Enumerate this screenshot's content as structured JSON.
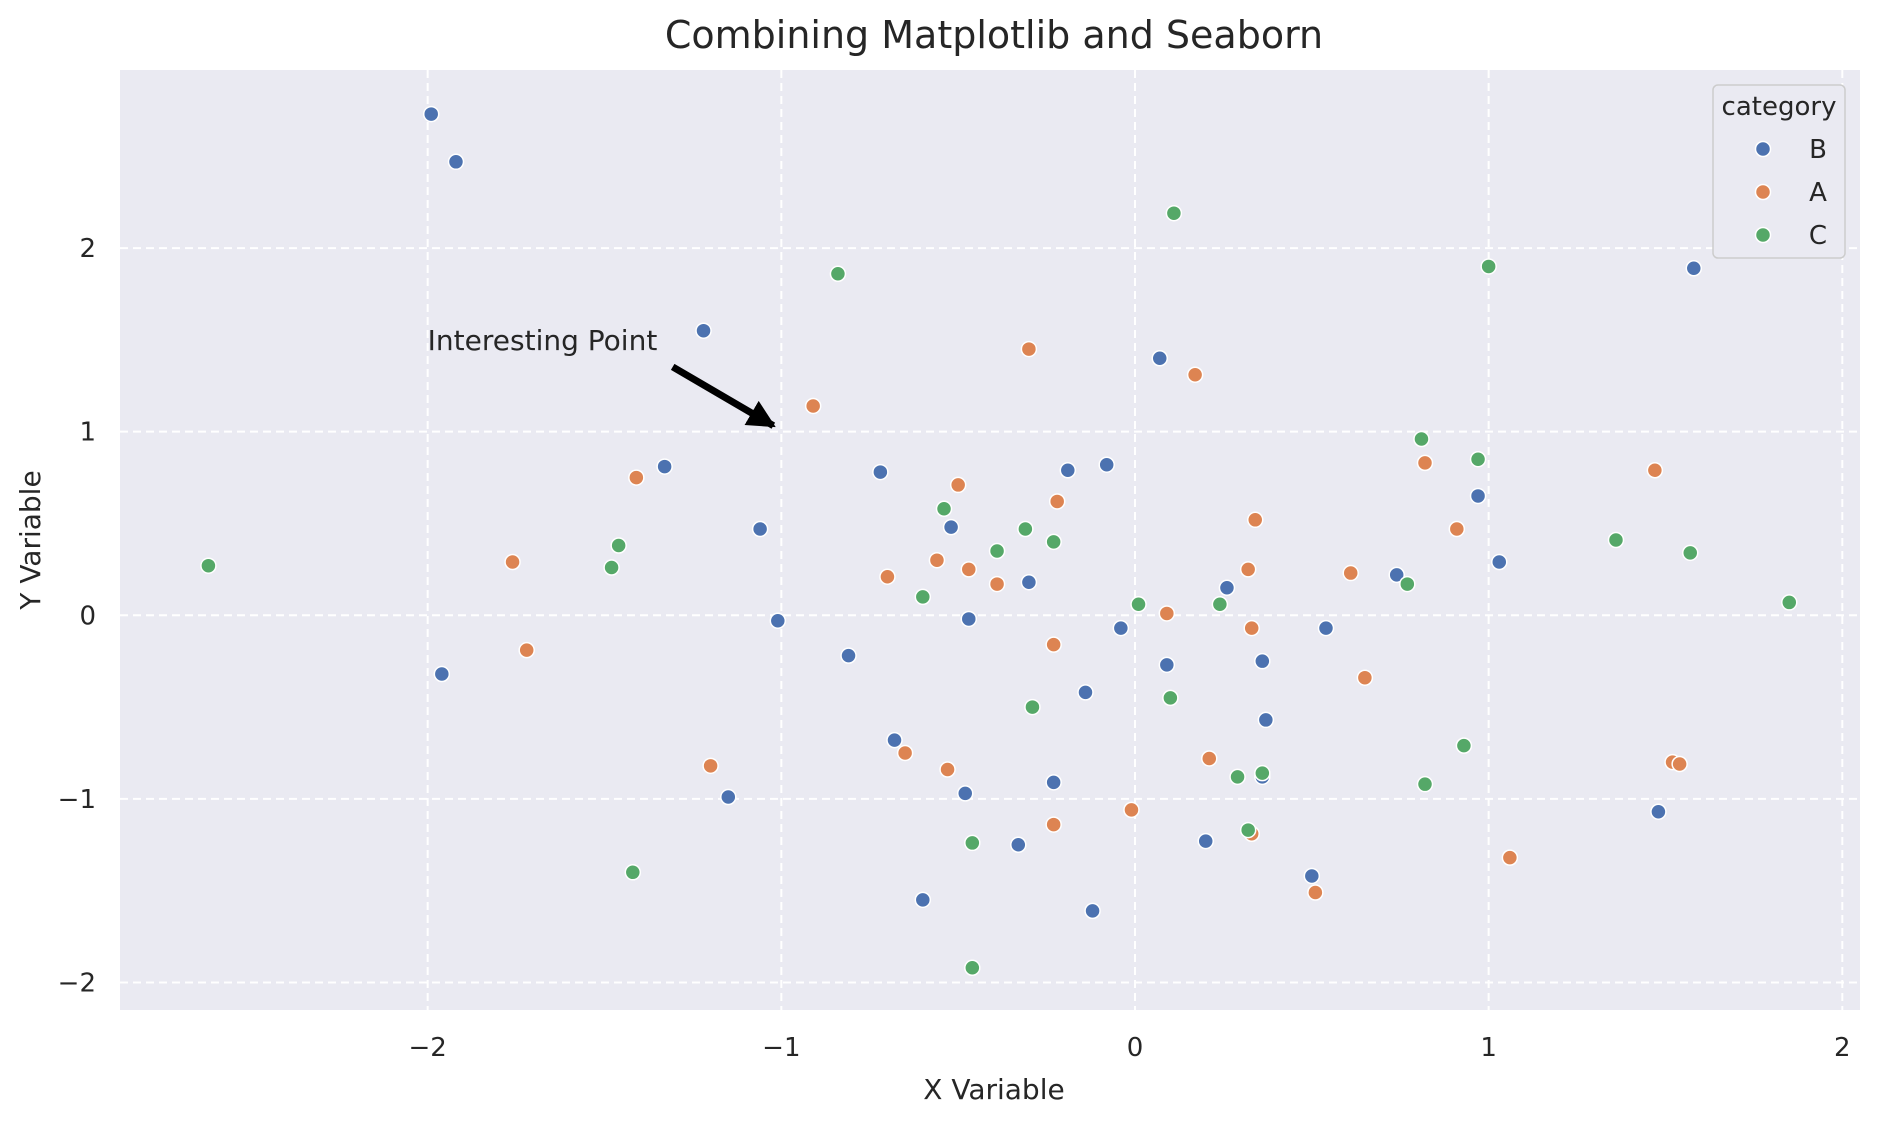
{
  "chart_data": {
    "type": "scatter",
    "title": "Combining Matplotlib and Seaborn",
    "xlabel": "X Variable",
    "ylabel": "Y Variable",
    "xlim": [
      -2.87,
      2.05
    ],
    "ylim": [
      -2.15,
      2.97
    ],
    "xticks": [
      -2,
      -1,
      0,
      1,
      2
    ],
    "yticks": [
      -2,
      -1,
      0,
      1,
      2
    ],
    "xtick_labels": [
      "−2",
      "−1",
      "0",
      "1",
      "2"
    ],
    "ytick_labels": [
      "−2",
      "−1",
      "0",
      "1",
      "2"
    ],
    "grid": true,
    "background": "#eaeaf2",
    "legend": {
      "title": "category",
      "placement": "top-right",
      "entries": [
        {
          "name": "B",
          "color": "#4c72b0"
        },
        {
          "name": "A",
          "color": "#dd8452"
        },
        {
          "name": "C",
          "color": "#55a868"
        }
      ]
    },
    "annotation": {
      "text": "Interesting Point",
      "xy": [
        -1,
        1
      ],
      "xytext": [
        -2,
        1.5
      ]
    },
    "series": [
      {
        "name": "B",
        "color": "#4c72b0",
        "points": [
          [
            -1.99,
            2.73
          ],
          [
            -1.92,
            2.47
          ],
          [
            -1.22,
            1.55
          ],
          [
            1.58,
            1.89
          ],
          [
            0.07,
            1.4
          ],
          [
            -1.33,
            0.81
          ],
          [
            -0.72,
            0.78
          ],
          [
            -0.19,
            0.79
          ],
          [
            -0.08,
            0.82
          ],
          [
            0.97,
            0.65
          ],
          [
            -1.06,
            0.47
          ],
          [
            -0.52,
            0.48
          ],
          [
            1.03,
            0.29
          ],
          [
            -0.3,
            0.18
          ],
          [
            0.26,
            0.15
          ],
          [
            0.74,
            0.22
          ],
          [
            -1.01,
            -0.03
          ],
          [
            -0.47,
            -0.02
          ],
          [
            -0.04,
            -0.07
          ],
          [
            0.54,
            -0.07
          ],
          [
            -1.96,
            -0.32
          ],
          [
            -0.81,
            -0.22
          ],
          [
            0.09,
            -0.27
          ],
          [
            0.36,
            -0.25
          ],
          [
            -0.14,
            -0.42
          ],
          [
            0.37,
            -0.57
          ],
          [
            -0.68,
            -0.68
          ],
          [
            -0.23,
            -0.91
          ],
          [
            0.36,
            -0.88
          ],
          [
            -1.15,
            -0.99
          ],
          [
            -0.48,
            -0.97
          ],
          [
            1.48,
            -1.07
          ],
          [
            -0.33,
            -1.25
          ],
          [
            0.2,
            -1.23
          ],
          [
            0.5,
            -1.42
          ],
          [
            -0.6,
            -1.55
          ],
          [
            -0.12,
            -1.61
          ]
        ]
      },
      {
        "name": "A",
        "color": "#dd8452",
        "points": [
          [
            -0.3,
            1.45
          ],
          [
            0.17,
            1.31
          ],
          [
            -0.91,
            1.14
          ],
          [
            -1.41,
            0.75
          ],
          [
            -0.5,
            0.71
          ],
          [
            -0.22,
            0.62
          ],
          [
            0.34,
            0.52
          ],
          [
            0.82,
            0.83
          ],
          [
            0.91,
            0.47
          ],
          [
            1.47,
            0.79
          ],
          [
            -1.76,
            0.29
          ],
          [
            -0.7,
            0.21
          ],
          [
            -0.56,
            0.3
          ],
          [
            -0.47,
            0.25
          ],
          [
            -0.39,
            0.17
          ],
          [
            0.32,
            0.25
          ],
          [
            0.61,
            0.23
          ],
          [
            0.09,
            0.01
          ],
          [
            0.33,
            -0.07
          ],
          [
            -1.72,
            -0.19
          ],
          [
            -0.23,
            -0.16
          ],
          [
            0.65,
            -0.34
          ],
          [
            -1.2,
            -0.82
          ],
          [
            -0.65,
            -0.75
          ],
          [
            -0.53,
            -0.84
          ],
          [
            0.21,
            -0.78
          ],
          [
            1.52,
            -0.8
          ],
          [
            1.54,
            -0.81
          ],
          [
            -0.01,
            -1.06
          ],
          [
            -0.23,
            -1.14
          ],
          [
            0.33,
            -1.19
          ],
          [
            1.06,
            -1.32
          ],
          [
            0.51,
            -1.51
          ]
        ]
      },
      {
        "name": "C",
        "color": "#55a868",
        "points": [
          [
            0.11,
            2.19
          ],
          [
            -0.84,
            1.86
          ],
          [
            1.0,
            1.9
          ],
          [
            0.81,
            0.96
          ],
          [
            0.97,
            0.85
          ],
          [
            -0.54,
            0.58
          ],
          [
            -0.31,
            0.47
          ],
          [
            -0.23,
            0.4
          ],
          [
            -0.39,
            0.35
          ],
          [
            1.36,
            0.41
          ],
          [
            1.57,
            0.34
          ],
          [
            -2.62,
            0.27
          ],
          [
            -1.46,
            0.38
          ],
          [
            -1.48,
            0.26
          ],
          [
            -0.6,
            0.1
          ],
          [
            0.77,
            0.17
          ],
          [
            1.85,
            0.07
          ],
          [
            0.01,
            0.06
          ],
          [
            0.24,
            0.06
          ],
          [
            -0.29,
            -0.5
          ],
          [
            0.1,
            -0.45
          ],
          [
            0.93,
            -0.71
          ],
          [
            0.29,
            -0.88
          ],
          [
            0.36,
            -0.86
          ],
          [
            0.82,
            -0.92
          ],
          [
            0.32,
            -1.17
          ],
          [
            -0.46,
            -1.24
          ],
          [
            -1.42,
            -1.4
          ],
          [
            -0.46,
            -1.92
          ]
        ]
      }
    ]
  }
}
